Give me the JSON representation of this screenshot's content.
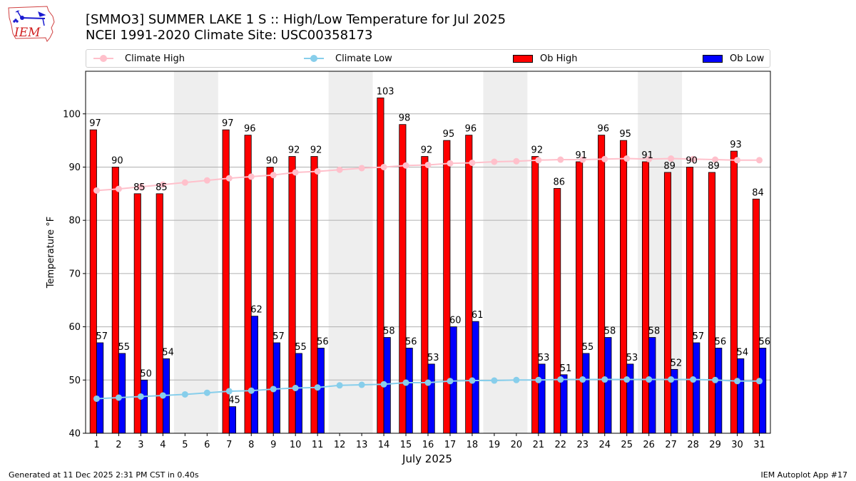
{
  "header": {
    "title_line1": "[SMMO3] SUMMER LAKE 1 S :: High/Low Temperature for Jul 2025",
    "title_line2": "NCEI 1991-2020 Climate Site: USC00358173",
    "logo_text": "IEM"
  },
  "legend": {
    "items": [
      {
        "label": "Climate High",
        "kind": "line",
        "color": "#ffc0cb"
      },
      {
        "label": "Climate Low",
        "kind": "line",
        "color": "#87ceeb"
      },
      {
        "label": "Ob High",
        "kind": "bar",
        "color": "#ff0000"
      },
      {
        "label": "Ob Low",
        "kind": "bar",
        "color": "#0000ff"
      }
    ]
  },
  "footer": {
    "left": "Generated at 11 Dec 2025 2:31 PM CST in 0.40s",
    "right": "IEM Autoplot App #17"
  },
  "chart_data": {
    "type": "bar",
    "title": "[SMMO3] SUMMER LAKE 1 S :: High/Low Temperature for Jul 2025",
    "subtitle": "NCEI 1991-2020 Climate Site: USC00358173",
    "xlabel": "July 2025",
    "ylabel": "Temperature °F",
    "ylim": [
      40,
      108
    ],
    "xlim": [
      0.5,
      31.5
    ],
    "yticks": [
      40,
      50,
      60,
      70,
      80,
      90,
      100
    ],
    "grid": "y",
    "legend_position": "top",
    "categories": [
      1,
      2,
      3,
      4,
      5,
      6,
      7,
      8,
      9,
      10,
      11,
      12,
      13,
      14,
      15,
      16,
      17,
      18,
      19,
      20,
      21,
      22,
      23,
      24,
      25,
      26,
      27,
      28,
      29,
      30,
      31
    ],
    "shaded_ranges": [
      [
        5,
        6
      ],
      [
        12,
        13
      ],
      [
        19,
        20
      ],
      [
        26,
        27
      ]
    ],
    "shade_color": "#eeeeee",
    "series": [
      {
        "name": "Ob High",
        "type": "bar",
        "color": "#ff0000",
        "values": [
          97,
          90,
          85,
          85,
          null,
          null,
          97,
          96,
          90,
          92,
          92,
          null,
          null,
          103,
          98,
          92,
          95,
          96,
          null,
          null,
          92,
          86,
          91,
          96,
          95,
          91,
          89,
          90,
          89,
          93,
          84
        ]
      },
      {
        "name": "Ob Low",
        "type": "bar",
        "color": "#0000ff",
        "values": [
          57,
          55,
          50,
          54,
          null,
          null,
          45,
          62,
          57,
          55,
          56,
          null,
          null,
          58,
          56,
          53,
          60,
          61,
          null,
          null,
          53,
          51,
          55,
          58,
          53,
          58,
          52,
          57,
          56,
          54,
          56
        ]
      },
      {
        "name": "Climate High",
        "type": "line",
        "color": "#ffc0cb",
        "values": [
          85.6,
          85.9,
          86.3,
          86.7,
          87.1,
          87.5,
          87.9,
          88.2,
          88.5,
          89.0,
          89.2,
          89.5,
          89.8,
          90.0,
          90.3,
          90.4,
          90.7,
          90.8,
          91.0,
          91.1,
          91.3,
          91.4,
          91.4,
          91.5,
          91.6,
          91.5,
          91.6,
          91.5,
          91.4,
          91.3,
          91.3
        ]
      },
      {
        "name": "Climate Low",
        "type": "line",
        "color": "#87ceeb",
        "values": [
          46.5,
          46.7,
          46.9,
          47.1,
          47.3,
          47.6,
          47.9,
          48.0,
          48.3,
          48.5,
          48.6,
          49.0,
          49.1,
          49.2,
          49.5,
          49.5,
          49.8,
          49.9,
          49.9,
          50.0,
          50.0,
          50.1,
          50.1,
          50.1,
          50.1,
          50.1,
          50.1,
          50.1,
          50.0,
          49.8,
          49.8
        ]
      }
    ]
  }
}
